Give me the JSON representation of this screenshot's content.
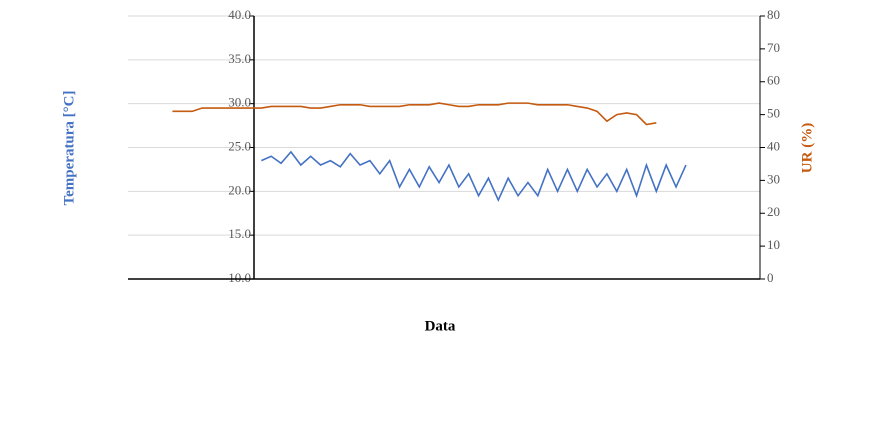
{
  "chart_data": {
    "type": "line",
    "x_label": "Data",
    "y_label": "Temperatura [°C]",
    "y2_label": "UR (%)",
    "categories": [
      null,
      null,
      null,
      null,
      null,
      null,
      null,
      null,
      null,
      null,
      null,
      null,
      null,
      null,
      null,
      null,
      null,
      null,
      null,
      null,
      null,
      null,
      null,
      null,
      null,
      null,
      null,
      null,
      null,
      null,
      null,
      null,
      null,
      null,
      null,
      null,
      null,
      null,
      null,
      null,
      null,
      null,
      null,
      null,
      null,
      null,
      null,
      null,
      null,
      null,
      null,
      null,
      null,
      null,
      null,
      null,
      null,
      null,
      null,
      null,
      null,
      null,
      null,
      null
    ],
    "ylim": [
      10,
      40
    ],
    "yticks": [
      {
        "value": 10,
        "label": "10.0"
      },
      {
        "value": 15,
        "label": "15.0"
      },
      {
        "value": 20,
        "label": "20.0"
      },
      {
        "value": 25,
        "label": "25.0"
      },
      {
        "value": 30,
        "label": "30.0"
      },
      {
        "value": 35,
        "label": "35.0"
      },
      {
        "value": 40,
        "label": "40.0"
      }
    ],
    "y2lim": [
      0,
      80
    ],
    "y2ticks": [
      0,
      10,
      20,
      30,
      40,
      50,
      60,
      70,
      80
    ],
    "grid": true,
    "series": [
      {
        "name": "Temperatura",
        "color": "#4472c4",
        "axis": "y",
        "values": [
          null,
          null,
          null,
          null,
          null,
          null,
          null,
          null,
          null,
          null,
          null,
          null,
          null,
          23.5,
          24,
          23.2,
          24.5,
          23,
          24,
          23,
          23.5,
          22.8,
          24.3,
          23,
          23.5,
          22,
          23.5,
          20.5,
          22.5,
          20.5,
          22.8,
          21,
          23,
          20.5,
          22,
          19.5,
          21.5,
          19,
          21.5,
          19.5,
          21,
          19.5,
          22.5,
          20,
          22.5,
          20,
          22.5,
          20.5,
          22,
          20,
          22.5,
          19.5,
          23,
          20,
          23,
          20.5,
          23,
          null,
          null,
          null,
          null,
          null,
          null,
          null
        ]
      },
      {
        "name": "UR",
        "color": "#c55a11",
        "axis": "y2",
        "values": [
          null,
          null,
          null,
          null,
          51,
          51,
          51,
          52,
          52,
          52,
          52,
          52,
          52,
          52,
          52.5,
          52.5,
          52.5,
          52.5,
          52,
          52,
          52.5,
          53,
          53,
          53,
          52.5,
          52.5,
          52.5,
          52.5,
          53,
          53,
          53,
          53.5,
          53,
          52.5,
          52.5,
          53,
          53,
          53,
          53.5,
          53.5,
          53.5,
          53,
          53,
          53,
          53,
          52.5,
          52,
          51,
          48,
          50,
          50.5,
          50,
          47,
          47.5,
          null,
          null,
          null,
          null,
          null,
          null,
          null,
          null,
          null,
          null
        ]
      }
    ]
  }
}
